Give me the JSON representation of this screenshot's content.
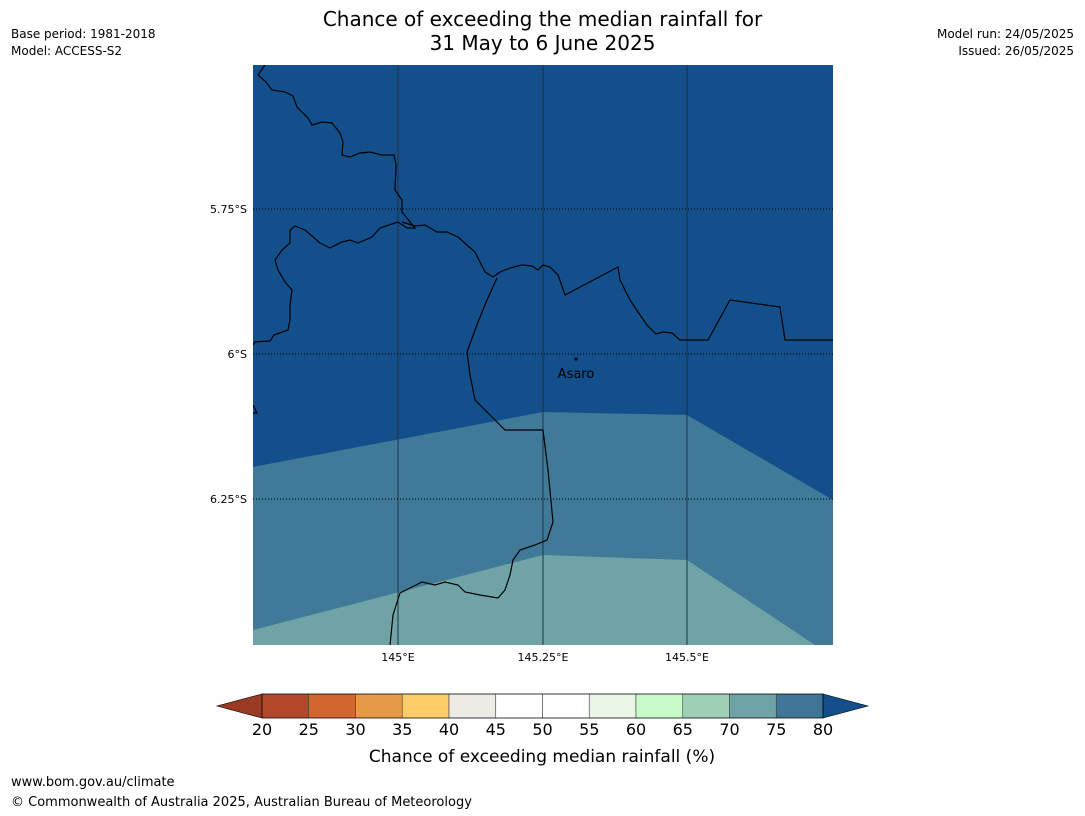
{
  "header": {
    "base_period": "Base period: 1981-2018",
    "model": "Model: ACCESS-S2",
    "model_run": "Model run: 24/05/2025",
    "issued": "Issued: 26/05/2025",
    "title_line1": "Chance of exceeding the median rainfall for",
    "title_line2": "31 May to 6 June 2025"
  },
  "map": {
    "lat_labels": [
      "5.75°S",
      "6°S",
      "6.25°S"
    ],
    "lon_labels": [
      "145°E",
      "145.25°E",
      "145.5°E"
    ],
    "place": {
      "name": "Asaro"
    },
    "colors": {
      "over_80": "#134f8b",
      "p75_80": "#417a99",
      "p70_75": "#6fa3a6",
      "boundary": "#000000"
    }
  },
  "colorbar": {
    "label": "Chance of exceeding median rainfall (%)",
    "ticks": [
      "20",
      "25",
      "30",
      "35",
      "40",
      "45",
      "50",
      "55",
      "60",
      "65",
      "70",
      "75",
      "80"
    ],
    "colors": [
      "#b2482a",
      "#d2662f",
      "#e69a47",
      "#fecb69",
      "#eeeae5",
      "#ffffff",
      "#ffffff",
      "#e9f6e6",
      "#c8fbc9",
      "#9ecfb7",
      "#6ea3a6",
      "#3f7698"
    ],
    "under_color": "#9a3a22",
    "over_color": "#134f8b"
  },
  "footer": {
    "url": "www.bom.gov.au/climate",
    "copyright": "© Commonwealth of Australia 2025, Australian Bureau of Meteorology"
  }
}
